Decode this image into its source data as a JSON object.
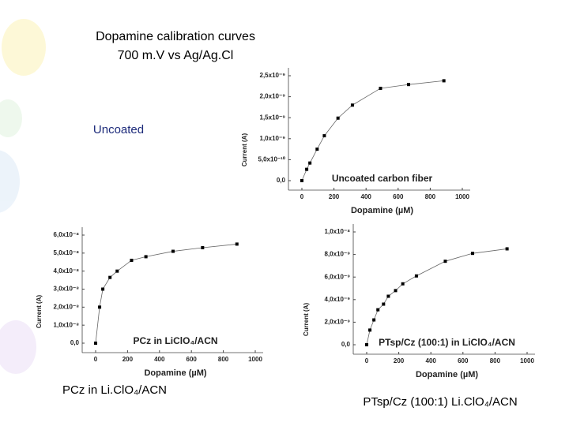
{
  "slide": {
    "title_lines": [
      "Dopamine calibration curves",
      "700 m.V vs Ag/Ag.Cl"
    ],
    "labels": [
      "Uncoated",
      "PCz in Li.ClO₄/ACN",
      "PTsp/Cz (100:1) Li.ClO₄/ACN"
    ]
  },
  "chart_data": [
    {
      "type": "line",
      "annotation": "Uncoated carbon fiber",
      "x_label": "Dopamine (µM)",
      "y_label": "Current (A)",
      "color": "#000000",
      "x": [
        0,
        30,
        50,
        95,
        140,
        225,
        315,
        490,
        665,
        885
      ],
      "values": [
        0,
        2.7e-10,
        4.2e-10,
        7.5e-10,
        1.07e-09,
        1.49e-09,
        1.8e-09,
        2.2e-09,
        2.29e-09,
        2.38e-09
      ],
      "xlim": [
        0,
        1000
      ],
      "xticks": [
        0,
        200,
        400,
        600,
        800,
        1000
      ],
      "ylim": [
        0,
        2.5e-09
      ],
      "yticks": [
        {
          "value": 0,
          "label": "0,0"
        },
        {
          "value": 5e-10,
          "label": "5,0x10⁻¹⁰"
        },
        {
          "value": 1e-09,
          "label": "1,0x10⁻⁹"
        },
        {
          "value": 1.5e-09,
          "label": "1,5x10⁻⁹"
        },
        {
          "value": 2e-09,
          "label": "2,0x10⁻⁹"
        },
        {
          "value": 2.5e-09,
          "label": "2,5x10⁻⁹"
        }
      ],
      "grid": false
    },
    {
      "type": "line",
      "annotation": "PCz in LiClO₄/ACN",
      "x_label": "Dopamine (µM)",
      "y_label": "Current (A)",
      "color": "#000000",
      "x": [
        0,
        25,
        45,
        90,
        135,
        225,
        315,
        485,
        670,
        885
      ],
      "values": [
        0,
        2e-08,
        3e-08,
        3.65e-08,
        4e-08,
        4.6e-08,
        4.8e-08,
        5.1e-08,
        5.3e-08,
        5.5e-08
      ],
      "xlim": [
        0,
        1000
      ],
      "xticks": [
        0,
        200,
        400,
        600,
        800,
        1000
      ],
      "ylim": [
        0,
        6e-08
      ],
      "yticks": [
        {
          "value": 0,
          "label": "0,0"
        },
        {
          "value": 1e-08,
          "label": "1,0x10⁻⁸"
        },
        {
          "value": 2e-08,
          "label": "2,0x10⁻⁸"
        },
        {
          "value": 3e-08,
          "label": "3,0x10⁻⁸"
        },
        {
          "value": 4e-08,
          "label": "4,0x10⁻⁸"
        },
        {
          "value": 5e-08,
          "label": "5,0x10⁻⁸"
        },
        {
          "value": 6e-08,
          "label": "6,0x10⁻⁸"
        }
      ],
      "grid": false
    },
    {
      "type": "line",
      "annotation": "PTsp/Cz (100:1) in LiClO₄/ACN",
      "x_label": "Dopamine (µM)",
      "y_label": "Current (A)",
      "color": "#000000",
      "x": [
        0,
        20,
        45,
        70,
        105,
        135,
        180,
        225,
        310,
        490,
        660,
        875
      ],
      "values": [
        0,
        1.3e-09,
        2.2e-09,
        3.1e-09,
        3.6e-09,
        4.3e-09,
        4.8e-09,
        5.4e-09,
        6.1e-09,
        7.4e-09,
        8.1e-09,
        8.5e-09
      ],
      "xlim": [
        0,
        1000
      ],
      "xticks": [
        0,
        200,
        400,
        600,
        800,
        1000
      ],
      "ylim": [
        0,
        1e-08
      ],
      "yticks": [
        {
          "value": 0,
          "label": "0,0"
        },
        {
          "value": 2e-09,
          "label": "2,0x10⁻⁹"
        },
        {
          "value": 4e-09,
          "label": "4,0x10⁻⁹"
        },
        {
          "value": 6e-09,
          "label": "6,0x10⁻⁹"
        },
        {
          "value": 8e-09,
          "label": "8,0x10⁻⁹"
        },
        {
          "value": 1e-08,
          "label": "1,0x10⁻⁸"
        }
      ],
      "grid": false
    }
  ]
}
